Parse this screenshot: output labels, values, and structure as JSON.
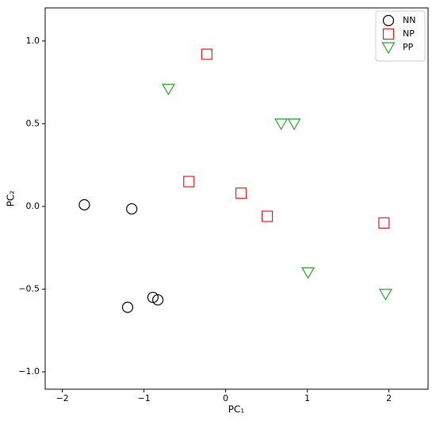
{
  "chart_data": {
    "type": "scatter",
    "x_label": "PC₁",
    "y_label": "PC₂",
    "xlim": [
      -2.21,
      2.48
    ],
    "ylim": [
      -1.105,
      1.2
    ],
    "xticks": [
      {
        "value": -2,
        "label": "−2"
      },
      {
        "value": -1,
        "label": "−1"
      },
      0,
      1,
      2
    ],
    "yticks": [
      {
        "value": -1,
        "label": "−1.0"
      },
      {
        "value": -0.5,
        "label": "−0.5"
      },
      {
        "value": 0,
        "label": "0.0"
      },
      {
        "value": 0.5,
        "label": "0.5"
      },
      {
        "value": 1,
        "label": "1.0"
      }
    ],
    "grid": false,
    "legend": "upper right",
    "series": [
      {
        "name": "NN",
        "color": "#000000",
        "marker": "circle",
        "x": [
          -1.73,
          -1.15,
          -1.2,
          -0.89,
          -0.83
        ],
        "values": [
          0.01,
          -0.015,
          -0.61,
          -0.55,
          -0.565
        ]
      },
      {
        "name": "NP",
        "color": "#e41a1c",
        "marker": "square",
        "x": [
          -0.23,
          -0.45,
          0.19,
          0.51,
          1.94
        ],
        "values": [
          0.92,
          0.15,
          0.08,
          -0.06,
          -0.1
        ]
      },
      {
        "name": "PP",
        "color": "#2ca02c",
        "marker": "triangle-down",
        "x": [
          -0.7,
          0.68,
          0.84,
          1.01,
          1.96
        ],
        "values": [
          0.71,
          0.5,
          0.5,
          -0.4,
          -0.53
        ]
      }
    ]
  }
}
